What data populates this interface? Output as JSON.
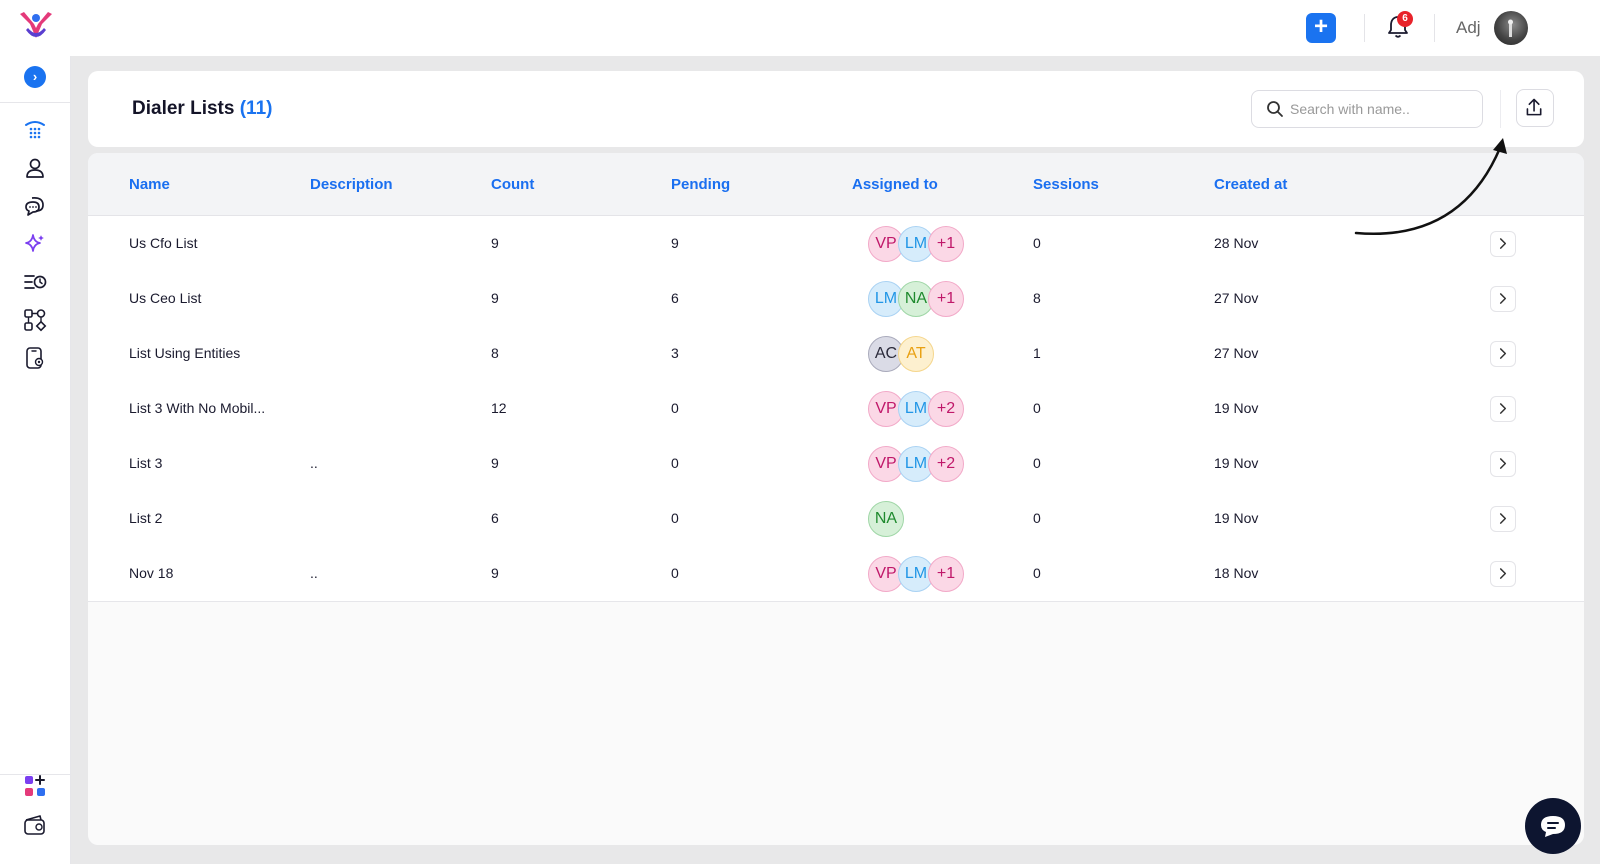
{
  "topbar": {
    "username": "Adj",
    "notification_count": "6"
  },
  "header": {
    "title": "Dialer Lists",
    "count": "(11)",
    "search_placeholder": "Search with name.."
  },
  "table": {
    "columns": [
      "Name",
      "Description",
      "Count",
      "Pending",
      "Assigned to",
      "Sessions",
      "Created at"
    ],
    "rows": [
      {
        "name": "Us Cfo List",
        "description": "",
        "count": "9",
        "pending": "9",
        "assigned": [
          {
            "initials": "VP",
            "color": "pink"
          },
          {
            "initials": "LM",
            "color": "blue"
          },
          {
            "initials": "+1",
            "color": "pink"
          }
        ],
        "sessions": "0",
        "created": "28 Nov"
      },
      {
        "name": "Us Ceo List",
        "description": "",
        "count": "9",
        "pending": "6",
        "assigned": [
          {
            "initials": "LM",
            "color": "blue"
          },
          {
            "initials": "NA",
            "color": "green"
          },
          {
            "initials": "+1",
            "color": "pink"
          }
        ],
        "sessions": "8",
        "created": "27 Nov"
      },
      {
        "name": "List Using Entities",
        "description": "",
        "count": "8",
        "pending": "3",
        "assigned": [
          {
            "initials": "AC",
            "color": "gray"
          },
          {
            "initials": "AT",
            "color": "yellow"
          }
        ],
        "sessions": "1",
        "created": "27 Nov"
      },
      {
        "name": "List 3 With No Mobil...",
        "description": "",
        "count": "12",
        "pending": "0",
        "assigned": [
          {
            "initials": "VP",
            "color": "pink"
          },
          {
            "initials": "LM",
            "color": "blue"
          },
          {
            "initials": "+2",
            "color": "pink"
          }
        ],
        "sessions": "0",
        "created": "19 Nov"
      },
      {
        "name": "List 3",
        "description": "..",
        "count": "9",
        "pending": "0",
        "assigned": [
          {
            "initials": "VP",
            "color": "pink"
          },
          {
            "initials": "LM",
            "color": "blue"
          },
          {
            "initials": "+2",
            "color": "pink"
          }
        ],
        "sessions": "0",
        "created": "19 Nov"
      },
      {
        "name": "List 2",
        "description": "",
        "count": "6",
        "pending": "0",
        "assigned": [
          {
            "initials": "NA",
            "color": "green"
          }
        ],
        "sessions": "0",
        "created": "19 Nov"
      },
      {
        "name": "Nov 18",
        "description": "..",
        "count": "9",
        "pending": "0",
        "assigned": [
          {
            "initials": "VP",
            "color": "pink"
          },
          {
            "initials": "LM",
            "color": "blue"
          },
          {
            "initials": "+1",
            "color": "pink"
          }
        ],
        "sessions": "0",
        "created": "18 Nov"
      }
    ]
  },
  "sidebar": {
    "items": [
      "dialpad-icon",
      "contacts-icon",
      "chat-icon",
      "sparkle-icon",
      "history-icon",
      "workflow-icon",
      "phone-settings-icon"
    ],
    "bottom_items": [
      "apps-icon",
      "wallet-icon"
    ]
  },
  "colors": {
    "accent": "#1a73f0",
    "badge": "#e8232b",
    "fab": "#0d1530"
  }
}
